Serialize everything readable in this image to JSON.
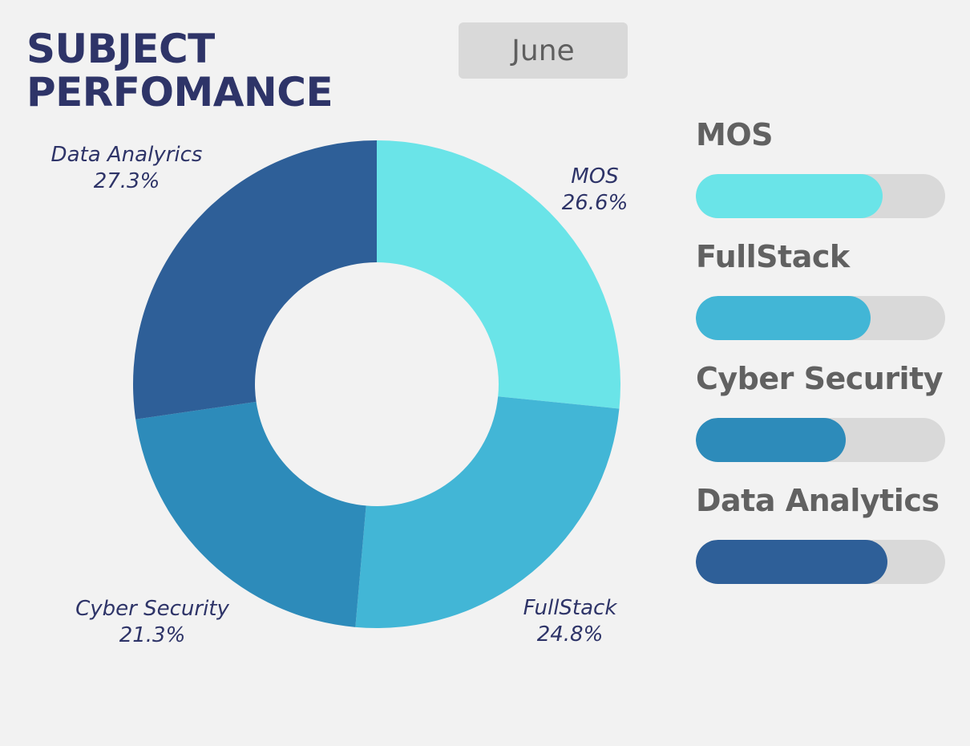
{
  "header": {
    "title_line1": "SUBJECT",
    "title_line2": "PERFOMANCE",
    "month_button_label": "June"
  },
  "chart_data": {
    "type": "pie",
    "variant": "donut",
    "slices": [
      {
        "label": "MOS",
        "value": 26.6,
        "display": "26.6%",
        "color": "#6ae4e8"
      },
      {
        "label": "FullStack",
        "value": 24.8,
        "display": "24.8%",
        "color": "#42b6d6"
      },
      {
        "label": "Cyber Security",
        "value": 21.3,
        "display": "21.3%",
        "color": "#2d8bba"
      },
      {
        "label": "Data Analyrics",
        "value": 27.3,
        "display": "27.3%",
        "color": "#2e5f98"
      }
    ]
  },
  "progress_bars": [
    {
      "label": "MOS",
      "fraction": 0.75,
      "color": "#6ae4e8"
    },
    {
      "label": "FullStack",
      "fraction": 0.7,
      "color": "#42b6d6"
    },
    {
      "label": "Cyber Security",
      "fraction": 0.6,
      "color": "#2d8bba"
    },
    {
      "label": "Data Analytics",
      "fraction": 0.77,
      "color": "#2e5f98"
    }
  ],
  "colors": {
    "background": "#f2f2f2",
    "title": "#2e3468",
    "track": "#d9d9d9"
  }
}
